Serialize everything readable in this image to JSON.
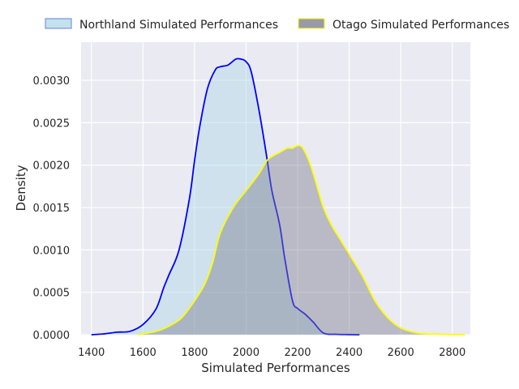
{
  "chart_data": {
    "type": "area",
    "title": "",
    "xlabel": "Simulated Performances",
    "ylabel": "Density",
    "xlim": [
      1360,
      2870
    ],
    "ylim": [
      0,
      0.00345
    ],
    "grid": true,
    "legend_position": "top, above plot",
    "x_ticks": [
      1400,
      1600,
      1800,
      2000,
      2200,
      2400,
      2600,
      2800
    ],
    "x_tick_labels": [
      "1400",
      "1600",
      "1800",
      "2000",
      "2200",
      "2400",
      "2600",
      "2800"
    ],
    "y_ticks": [
      0,
      0.0005,
      0.001,
      0.0015,
      0.002,
      0.0025,
      0.003
    ],
    "y_tick_labels": [
      "0.0000",
      "0.0005",
      "0.0010",
      "0.0015",
      "0.0020",
      "0.0025",
      "0.0030"
    ],
    "series": [
      {
        "name": "Northland Simulated Performances",
        "line_color": "#0000ff",
        "fill_color": "#add8e6",
        "fill_opacity": 0.45,
        "x": [
          1400,
          1450,
          1500,
          1550,
          1600,
          1650,
          1680,
          1700,
          1740,
          1780,
          1800,
          1820,
          1850,
          1880,
          1900,
          1930,
          1960,
          1980,
          2000,
          2020,
          2050,
          2080,
          2100,
          2130,
          2150,
          2180,
          2200,
          2230,
          2260,
          2300,
          2350,
          2400,
          2440
        ],
        "y": [
          0,
          1e-05,
          3e-05,
          4e-05,
          0.00012,
          0.0003,
          0.00055,
          0.0007,
          0.001,
          0.0016,
          0.00205,
          0.00245,
          0.0029,
          0.00312,
          0.00316,
          0.00318,
          0.00325,
          0.00325,
          0.00322,
          0.0031,
          0.00265,
          0.0021,
          0.0017,
          0.0013,
          0.0009,
          0.0004,
          0.00031,
          0.00024,
          0.00015,
          2e-05,
          5e-06,
          2e-06,
          0
        ]
      },
      {
        "name": "Otago Simulated Performances",
        "line_color": "#ffff00",
        "fill_color": "#7f8191",
        "fill_opacity": 0.45,
        "x": [
          1580,
          1650,
          1700,
          1750,
          1800,
          1840,
          1870,
          1900,
          1950,
          2000,
          2050,
          2080,
          2100,
          2130,
          2160,
          2180,
          2200,
          2220,
          2250,
          2280,
          2300,
          2330,
          2370,
          2400,
          2450,
          2500,
          2550,
          2600,
          2650,
          2700,
          2750,
          2800,
          2850
        ],
        "y": [
          0,
          4e-05,
          0.0001,
          0.0002,
          0.0004,
          0.0006,
          0.00085,
          0.0012,
          0.0015,
          0.0017,
          0.0019,
          0.00205,
          0.0021,
          0.00215,
          0.0022,
          0.0022,
          0.00223,
          0.0022,
          0.002,
          0.0017,
          0.0015,
          0.0013,
          0.0011,
          0.00095,
          0.0007,
          0.0004,
          0.0002,
          8e-05,
          3e-05,
          1e-05,
          5e-06,
          2e-06,
          0
        ]
      }
    ]
  }
}
